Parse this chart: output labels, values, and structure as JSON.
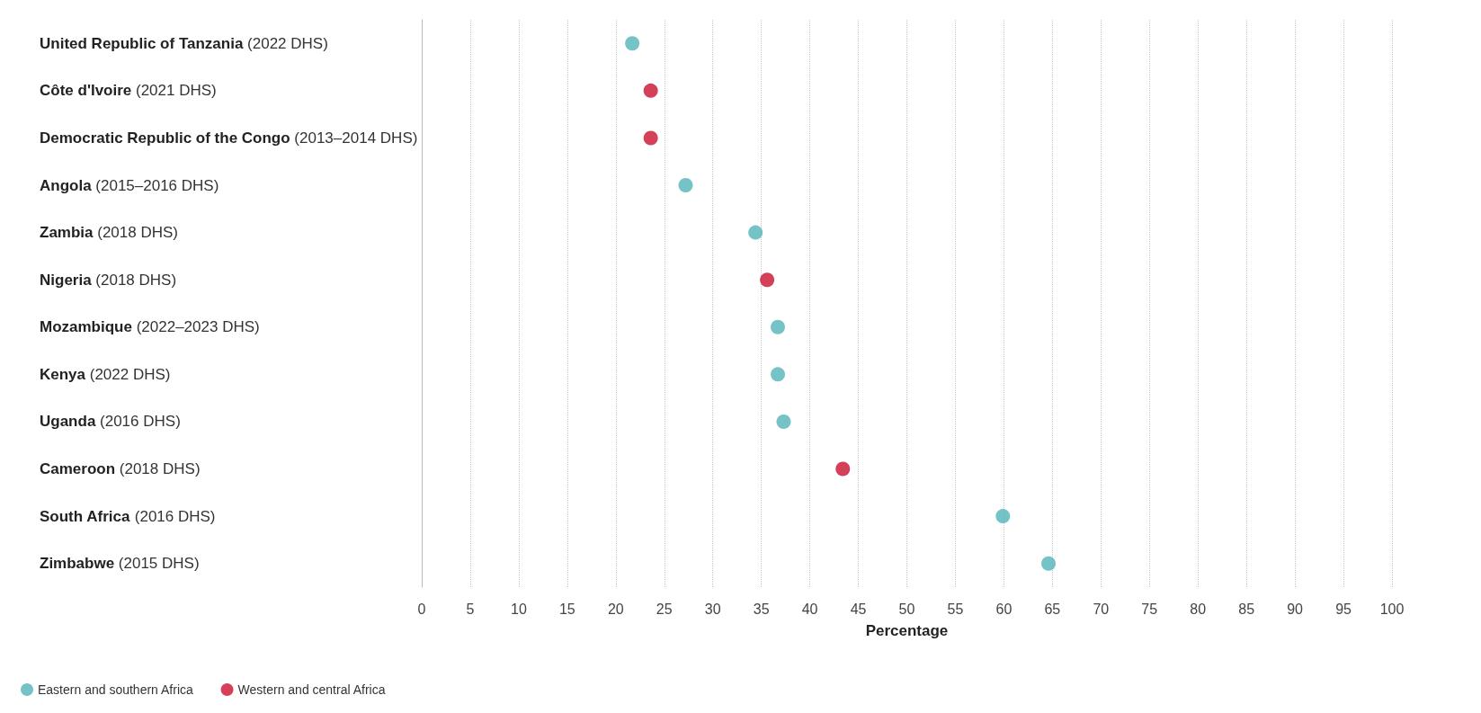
{
  "chart_data": {
    "type": "scatter",
    "xlabel": "Percentage",
    "orientation": "horizontal",
    "categories": [
      "United Republic of Tanzania (2022 DHS)",
      "Côte d'Ivoire (2021 DHS)",
      "Democratic Republic of the Congo (2013–2014 DHS)",
      "Angola (2015–2016 DHS)",
      "Zambia (2018 DHS)",
      "Nigeria (2018 DHS)",
      "Mozambique (2022–2023 DHS)",
      "Kenya (2022 DHS)",
      "Uganda (2016 DHS)",
      "Cameroon (2018 DHS)",
      "South Africa (2016 DHS)",
      "Zimbabwe (2015 DHS)"
    ],
    "series": [
      {
        "name": "Eastern and southern Africa",
        "color": "#52b3b9",
        "values": [
          21.7,
          null,
          null,
          27.2,
          34.4,
          null,
          36.7,
          36.7,
          37.3,
          null,
          59.9,
          64.6
        ]
      },
      {
        "name": "Western and central Africa",
        "color": "#c8102e",
        "values": [
          null,
          23.6,
          23.6,
          null,
          null,
          35.6,
          null,
          null,
          null,
          43.4,
          null,
          null
        ]
      }
    ],
    "xlim": [
      0,
      100
    ],
    "xticks": [
      0,
      5,
      10,
      15,
      20,
      25,
      30,
      35,
      40,
      45,
      50,
      55,
      60,
      65,
      70,
      75,
      80,
      85,
      90,
      95,
      100
    ],
    "grid": "x",
    "legend": "bottom left",
    "marker": "circle"
  }
}
